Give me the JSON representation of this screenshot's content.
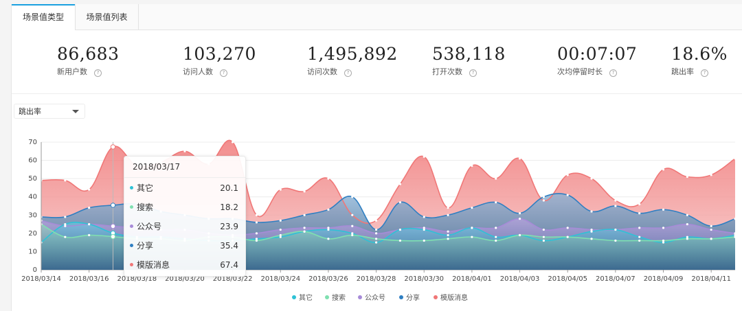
{
  "tabs": [
    {
      "label": "场景值类型",
      "active": true
    },
    {
      "label": "场景值列表",
      "active": false
    }
  ],
  "stats": [
    {
      "value": "86,683",
      "label": "新用户数"
    },
    {
      "value": "103,270",
      "label": "访问人数"
    },
    {
      "value": "1,495,892",
      "label": "访问次数"
    },
    {
      "value": "538,118",
      "label": "打开次数"
    },
    {
      "value": "00:07:07",
      "label": "次均停留时长"
    },
    {
      "value": "18.6%",
      "label": "跳出率"
    }
  ],
  "help_glyph": "?",
  "metric_select": {
    "value": "跳出率"
  },
  "colors": {
    "accent": "#1aa0e0",
    "其它": "#2ec2d6",
    "搜索": "#7fe0b0",
    "公众号": "#a78bd8",
    "分享": "#2f7fc2",
    "模版消息": "#f07777"
  },
  "tooltip": {
    "title": "2018/03/17",
    "rows": [
      {
        "label": "其它",
        "value": "20.1"
      },
      {
        "label": "搜索",
        "value": "18.2"
      },
      {
        "label": "公众号",
        "value": "23.9"
      },
      {
        "label": "分享",
        "value": "35.4"
      },
      {
        "label": "模版消息",
        "value": "67.4"
      }
    ]
  },
  "chart_data": {
    "type": "area",
    "ylim": [
      0,
      70
    ],
    "yticks": [
      0,
      10,
      20,
      30,
      40,
      50,
      60,
      70
    ],
    "x": [
      "2018/03/14",
      "2018/03/15",
      "2018/03/16",
      "2018/03/17",
      "2018/03/18",
      "2018/03/19",
      "2018/03/20",
      "2018/03/21",
      "2018/03/22",
      "2018/03/23",
      "2018/03/24",
      "2018/03/25",
      "2018/03/26",
      "2018/03/27",
      "2018/03/28",
      "2018/03/29",
      "2018/03/30",
      "2018/03/31",
      "2018/04/01",
      "2018/04/02",
      "2018/04/03",
      "2018/04/04",
      "2018/04/05",
      "2018/04/06",
      "2018/04/07",
      "2018/04/08",
      "2018/04/09",
      "2018/04/10",
      "2018/04/11",
      "2018/04/12"
    ],
    "x_tick_labels": [
      "2018/03/14",
      "2018/03/16",
      "2018/03/18",
      "2018/03/20",
      "2018/03/22",
      "2018/03/24",
      "2018/03/26",
      "2018/03/28",
      "2018/03/30",
      "2018/04/01",
      "2018/04/03",
      "2018/04/05",
      "2018/04/07",
      "2018/04/09",
      "2018/04/11"
    ],
    "legend": [
      "其它",
      "搜索",
      "公众号",
      "分享",
      "模版消息"
    ],
    "legend_position": "bottom",
    "series": [
      {
        "name": "其它",
        "values": [
          15,
          25,
          25,
          20.1,
          18,
          18,
          17,
          16,
          16,
          17,
          18,
          21,
          22,
          20,
          15,
          22,
          22,
          19,
          23,
          18,
          19,
          16,
          18,
          21,
          22,
          18,
          15,
          18,
          17,
          19
        ]
      },
      {
        "name": "搜索",
        "values": [
          25,
          18,
          19,
          18.2,
          17,
          17,
          16,
          18,
          18,
          16,
          19,
          21,
          17,
          19,
          17,
          16,
          16,
          17,
          18,
          16,
          19,
          18,
          18,
          17,
          16,
          16,
          16,
          17,
          17,
          18
        ]
      },
      {
        "name": "公众号",
        "values": [
          27,
          24,
          25,
          23.9,
          23,
          22,
          22,
          20,
          19,
          20,
          22,
          23,
          23,
          24,
          20,
          22,
          23,
          21,
          23,
          23,
          28,
          22,
          23,
          22,
          22,
          23,
          23,
          25,
          22,
          20
        ]
      },
      {
        "name": "分享",
        "values": [
          29,
          29,
          34,
          35.4,
          36,
          32,
          30,
          28,
          28,
          26,
          27,
          30,
          33,
          40,
          22,
          37,
          29,
          30,
          34,
          37,
          31,
          40,
          41,
          32,
          35,
          31,
          33,
          30,
          24,
          28
        ]
      },
      {
        "name": "模版消息",
        "values": [
          49,
          49,
          44,
          67.4,
          57,
          59,
          65,
          58,
          70,
          30,
          44,
          43,
          50,
          30,
          27,
          47,
          62,
          34,
          57,
          50,
          61,
          38,
          52,
          50,
          38,
          36,
          55,
          51,
          52,
          61
        ]
      }
    ]
  }
}
